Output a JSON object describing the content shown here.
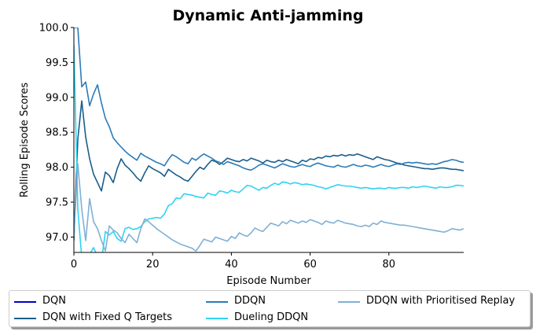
{
  "chart_data": {
    "type": "line",
    "title": "Dynamic Anti-jamming",
    "xlabel": "Episode Number",
    "ylabel": "Rolling Episode Scores",
    "xlim": [
      0,
      99
    ],
    "ylim": [
      96.78,
      100.0
    ],
    "xticks": [
      "0",
      "20",
      "40",
      "60",
      "80"
    ],
    "yticks": [
      "97.0",
      "97.5",
      "98.0",
      "98.5",
      "99.0",
      "99.5",
      "100.0"
    ],
    "grid": false,
    "legend_position": "below",
    "series": [
      {
        "name": "DQN",
        "color": "#0000c8",
        "x": [
          0,
          0.3
        ],
        "y": [
          100.0,
          100.0
        ]
      },
      {
        "name": "DQN with Fixed Q Targets",
        "color": "#1a5e8a",
        "x": [
          0,
          1,
          2,
          3,
          4,
          5,
          6,
          7,
          8,
          9,
          10,
          11,
          12,
          13,
          14,
          15,
          16,
          17,
          18,
          19,
          20,
          21,
          22,
          23,
          24,
          25,
          26,
          27,
          28,
          29,
          30,
          31,
          32,
          33,
          34,
          35,
          36,
          37,
          38,
          39,
          40,
          41,
          42,
          43,
          44,
          45,
          46,
          47,
          48,
          49,
          50,
          51,
          52,
          53,
          54,
          55,
          56,
          57,
          58,
          59,
          60,
          61,
          62,
          63,
          64,
          65,
          66,
          67,
          68,
          69,
          70,
          71,
          72,
          73,
          74,
          75,
          76,
          77,
          78,
          79,
          80,
          81,
          82,
          83,
          84,
          85,
          86,
          87,
          88,
          89,
          90,
          91,
          92,
          93,
          94,
          95,
          96,
          97,
          98,
          99
        ],
        "y": [
          96.95,
          98.4,
          98.95,
          98.43,
          98.12,
          97.9,
          97.78,
          97.66,
          97.93,
          97.88,
          97.78,
          97.98,
          98.12,
          98.03,
          97.98,
          97.92,
          97.85,
          97.8,
          97.92,
          98.02,
          97.98,
          97.95,
          97.92,
          97.87,
          97.97,
          97.93,
          97.89,
          97.86,
          97.82,
          97.8,
          97.87,
          97.94,
          98.0,
          97.97,
          98.04,
          98.1,
          98.08,
          98.04,
          98.08,
          98.13,
          98.11,
          98.09,
          98.08,
          98.11,
          98.09,
          98.13,
          98.11,
          98.09,
          98.06,
          98.1,
          98.08,
          98.07,
          98.1,
          98.08,
          98.11,
          98.09,
          98.07,
          98.05,
          98.1,
          98.08,
          98.12,
          98.11,
          98.14,
          98.13,
          98.16,
          98.15,
          98.17,
          98.16,
          98.18,
          98.16,
          98.18,
          98.17,
          98.19,
          98.17,
          98.15,
          98.13,
          98.11,
          98.15,
          98.13,
          98.11,
          98.1,
          98.08,
          98.06,
          98.05,
          98.03,
          98.02,
          98.01,
          98.0,
          97.99,
          97.98,
          97.98,
          97.97,
          97.98,
          97.99,
          97.99,
          97.98,
          97.97,
          97.97,
          97.96,
          97.95
        ]
      },
      {
        "name": "DDQN",
        "color": "#2b7bb9",
        "x": [
          0,
          1,
          2,
          3,
          4,
          5,
          6,
          7,
          8,
          9,
          10,
          11,
          12,
          13,
          14,
          15,
          16,
          17,
          18,
          19,
          20,
          21,
          22,
          23,
          24,
          25,
          26,
          27,
          28,
          29,
          30,
          31,
          32,
          33,
          34,
          35,
          36,
          37,
          38,
          39,
          40,
          41,
          42,
          43,
          44,
          45,
          46,
          47,
          48,
          49,
          50,
          51,
          52,
          53,
          54,
          55,
          56,
          57,
          58,
          59,
          60,
          61,
          62,
          63,
          64,
          65,
          66,
          67,
          68,
          69,
          70,
          71,
          72,
          73,
          74,
          75,
          76,
          77,
          78,
          79,
          80,
          81,
          82,
          83,
          84,
          85,
          86,
          87,
          88,
          89,
          90,
          91,
          92,
          93,
          94,
          95,
          96,
          97,
          98,
          99
        ],
        "y": [
          100.0,
          100.0,
          99.15,
          99.22,
          98.88,
          99.05,
          99.18,
          98.92,
          98.7,
          98.58,
          98.42,
          98.35,
          98.29,
          98.23,
          98.18,
          98.14,
          98.1,
          98.2,
          98.16,
          98.13,
          98.1,
          98.07,
          98.05,
          98.02,
          98.11,
          98.18,
          98.15,
          98.11,
          98.07,
          98.05,
          98.13,
          98.1,
          98.15,
          98.19,
          98.16,
          98.13,
          98.09,
          98.07,
          98.04,
          98.08,
          98.06,
          98.04,
          98.02,
          97.99,
          97.97,
          97.96,
          97.99,
          98.03,
          98.05,
          98.03,
          98.01,
          97.99,
          98.02,
          98.05,
          98.03,
          98.01,
          98.0,
          98.02,
          98.04,
          98.02,
          98.01,
          98.04,
          98.06,
          98.04,
          98.02,
          98.01,
          98.0,
          98.03,
          98.01,
          98.0,
          98.02,
          98.04,
          98.02,
          98.01,
          98.03,
          98.02,
          98.0,
          98.02,
          98.04,
          98.02,
          98.01,
          98.03,
          98.05,
          98.04,
          98.06,
          98.07,
          98.06,
          98.07,
          98.06,
          98.05,
          98.04,
          98.05,
          98.04,
          98.06,
          98.08,
          98.09,
          98.11,
          98.1,
          98.08,
          98.07
        ]
      },
      {
        "name": "Dueling DDQN",
        "color": "#2fd3f2",
        "x": [
          0,
          1,
          2,
          3,
          4,
          5,
          6,
          7,
          8,
          9,
          10,
          11,
          12,
          13,
          14,
          15,
          16,
          17,
          18,
          19,
          20,
          21,
          22,
          23,
          24,
          25,
          26,
          27,
          28,
          29,
          30,
          31,
          32,
          33,
          34,
          35,
          36,
          37,
          38,
          39,
          40,
          41,
          42,
          43,
          44,
          45,
          46,
          47,
          48,
          49,
          50,
          51,
          52,
          53,
          54,
          55,
          56,
          57,
          58,
          59,
          60,
          61,
          62,
          63,
          64,
          65,
          66,
          67,
          68,
          69,
          70,
          71,
          72,
          73,
          74,
          75,
          76,
          77,
          78,
          79,
          80,
          81,
          82,
          83,
          84,
          85,
          86,
          87,
          88,
          89,
          90,
          91,
          92,
          93,
          94,
          95,
          96,
          97,
          98,
          99
        ],
        "y": [
          99.75,
          97.4,
          96.7,
          96.55,
          96.75,
          96.85,
          96.72,
          96.65,
          97.08,
          97.03,
          97.08,
          96.98,
          96.94,
          97.12,
          97.14,
          97.11,
          97.12,
          97.15,
          97.22,
          97.26,
          97.27,
          97.28,
          97.27,
          97.33,
          97.45,
          97.48,
          97.56,
          97.55,
          97.62,
          97.61,
          97.6,
          97.58,
          97.57,
          97.56,
          97.63,
          97.61,
          97.6,
          97.66,
          97.65,
          97.63,
          97.67,
          97.65,
          97.64,
          97.69,
          97.74,
          97.73,
          97.7,
          97.67,
          97.71,
          97.7,
          97.74,
          97.77,
          97.75,
          97.79,
          97.78,
          97.76,
          97.78,
          97.77,
          97.75,
          97.76,
          97.75,
          97.74,
          97.72,
          97.71,
          97.69,
          97.71,
          97.73,
          97.75,
          97.74,
          97.73,
          97.73,
          97.72,
          97.71,
          97.7,
          97.71,
          97.7,
          97.69,
          97.7,
          97.7,
          97.69,
          97.71,
          97.7,
          97.7,
          97.71,
          97.71,
          97.7,
          97.72,
          97.71,
          97.72,
          97.73,
          97.72,
          97.71,
          97.7,
          97.72,
          97.71,
          97.71,
          97.72,
          97.74,
          97.74,
          97.73
        ]
      },
      {
        "name": "DDQN with Prioritised Replay",
        "color": "#7fb0d5",
        "x": [
          0,
          1,
          2,
          3,
          4,
          5,
          6,
          7,
          8,
          9,
          10,
          11,
          12,
          13,
          14,
          15,
          16,
          17,
          18,
          19,
          20,
          21,
          22,
          23,
          24,
          25,
          26,
          27,
          28,
          29,
          30,
          31,
          32,
          33,
          34,
          35,
          36,
          37,
          38,
          39,
          40,
          41,
          42,
          43,
          44,
          45,
          46,
          47,
          48,
          49,
          50,
          51,
          52,
          53,
          54,
          55,
          56,
          57,
          58,
          59,
          60,
          61,
          62,
          63,
          64,
          65,
          66,
          67,
          68,
          69,
          70,
          71,
          72,
          73,
          74,
          75,
          76,
          77,
          78,
          79,
          80,
          81,
          82,
          83,
          84,
          85,
          86,
          87,
          88,
          89,
          90,
          91,
          92,
          93,
          94,
          95,
          96,
          97,
          98,
          99
        ],
        "y": [
          97.0,
          98.05,
          97.4,
          96.95,
          97.55,
          97.22,
          97.12,
          96.95,
          96.8,
          97.16,
          97.1,
          97.06,
          96.98,
          96.92,
          97.04,
          96.98,
          96.92,
          97.12,
          97.26,
          97.22,
          97.17,
          97.12,
          97.08,
          97.04,
          97.0,
          96.96,
          96.93,
          96.9,
          96.88,
          96.86,
          96.84,
          96.8,
          96.88,
          96.97,
          96.95,
          96.93,
          97.0,
          96.98,
          96.96,
          96.94,
          97.01,
          96.98,
          97.06,
          97.03,
          97.01,
          97.06,
          97.13,
          97.1,
          97.08,
          97.14,
          97.2,
          97.18,
          97.16,
          97.22,
          97.19,
          97.24,
          97.22,
          97.2,
          97.23,
          97.21,
          97.25,
          97.23,
          97.21,
          97.18,
          97.23,
          97.21,
          97.2,
          97.24,
          97.22,
          97.2,
          97.19,
          97.18,
          97.16,
          97.15,
          97.17,
          97.15,
          97.2,
          97.18,
          97.23,
          97.21,
          97.2,
          97.19,
          97.18,
          97.17,
          97.17,
          97.16,
          97.15,
          97.14,
          97.13,
          97.12,
          97.11,
          97.1,
          97.09,
          97.08,
          97.07,
          97.09,
          97.12,
          97.11,
          97.1,
          97.12
        ]
      }
    ]
  }
}
